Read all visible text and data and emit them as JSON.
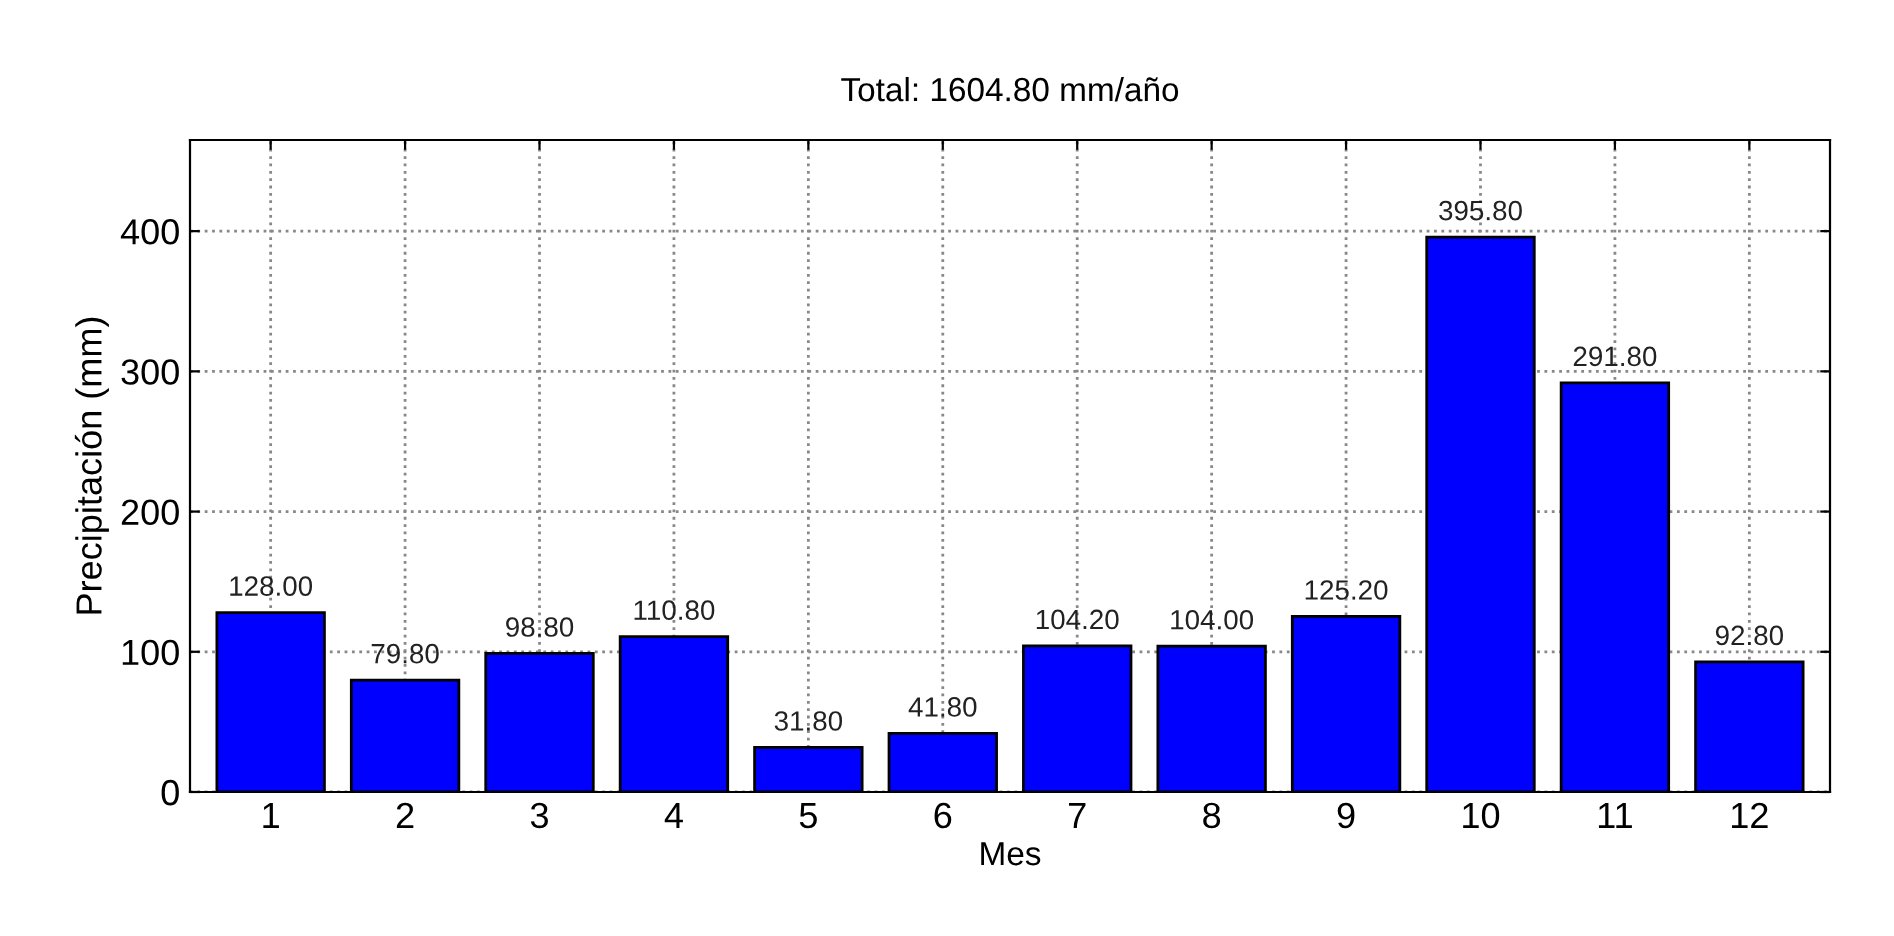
{
  "chart_data": {
    "type": "bar",
    "title": "Total: 1604.80 mm/año",
    "xlabel": "Mes",
    "ylabel": "Precipitación (mm)",
    "categories": [
      "1",
      "2",
      "3",
      "4",
      "5",
      "6",
      "7",
      "8",
      "9",
      "10",
      "11",
      "12"
    ],
    "values": [
      128.0,
      79.8,
      98.8,
      110.8,
      31.8,
      41.8,
      104.2,
      104.0,
      125.2,
      395.8,
      291.8,
      92.8
    ],
    "value_labels": [
      "128.00",
      "79.80",
      "98.80",
      "110.80",
      "31.80",
      "41.80",
      "104.20",
      "104.00",
      "125.20",
      "395.80",
      "291.80",
      "92.80"
    ],
    "color": "#0000ff",
    "ylim": [
      0,
      465
    ],
    "yticks": [
      0,
      100,
      200,
      300,
      400
    ],
    "grid": true,
    "legend": false
  }
}
